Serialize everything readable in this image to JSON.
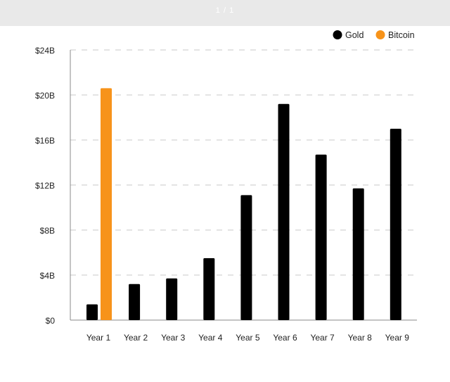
{
  "viewer": {
    "page_indicator": "1 / 1"
  },
  "colors": {
    "gold": "#000000",
    "bitcoin": "#f7931a",
    "grid": "#c9c9c9",
    "axis": "#888888",
    "text": "#222222"
  },
  "chart_data": {
    "type": "bar",
    "title": "",
    "xlabel": "",
    "ylabel": "",
    "categories": [
      "Year 1",
      "Year 2",
      "Year 3",
      "Year 4",
      "Year 5",
      "Year 6",
      "Year 7",
      "Year 8",
      "Year 9"
    ],
    "series": [
      {
        "name": "Gold",
        "color": "#000000",
        "values": [
          1.4,
          3.2,
          3.7,
          5.5,
          11.1,
          19.2,
          14.7,
          11.7,
          17.0
        ]
      },
      {
        "name": "Bitcoin",
        "color": "#f7931a",
        "values": [
          20.6,
          null,
          null,
          null,
          null,
          null,
          null,
          null,
          null
        ]
      }
    ],
    "ylim": [
      0,
      24
    ],
    "yticks": [
      0,
      4,
      8,
      12,
      16,
      20,
      24
    ],
    "ytick_labels": [
      "$0",
      "$4B",
      "$8B",
      "$12B",
      "$16B",
      "$20B",
      "$24B"
    ],
    "grid": "horizontal dashed",
    "legend": {
      "position": "top-right",
      "entries": [
        "Gold",
        "Bitcoin"
      ]
    }
  }
}
